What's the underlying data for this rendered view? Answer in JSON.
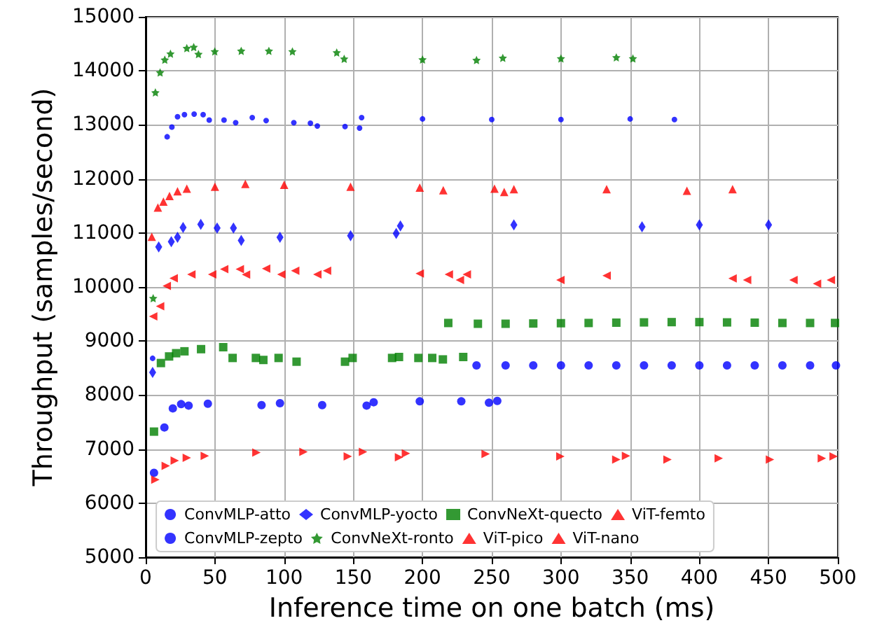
{
  "chart_data": {
    "type": "scatter",
    "xlabel": "Inference time on one batch (ms)",
    "ylabel": "Throughput (samples/second)",
    "xlim": [
      0,
      500
    ],
    "xticks": [
      0,
      50,
      100,
      150,
      200,
      250,
      300,
      350,
      400,
      450,
      500
    ],
    "ylim": [
      5000,
      15000
    ],
    "yticks": [
      5000,
      6000,
      7000,
      8000,
      9000,
      10000,
      11000,
      12000,
      13000,
      14000,
      15000
    ],
    "grid": true,
    "legend": "bottom",
    "series": [
      {
        "name": "ConvMLP-atto",
        "color": "#0000ff",
        "marker": "point",
        "x": [
          5,
          15.5,
          18.9,
          23,
          28,
          35,
          41.5,
          45.9,
          56.6,
          65,
          77,
          87,
          107,
          119,
          124,
          144,
          154.5,
          156,
          200,
          250,
          300,
          350,
          382
        ],
        "values": [
          8680,
          12780,
          12960,
          13150,
          13190,
          13200,
          13190,
          13090,
          13090,
          13040,
          13135,
          13080,
          13040,
          13030,
          12980,
          12970,
          12940,
          13135,
          13110,
          13100,
          13100,
          13110,
          13100
        ]
      },
      {
        "name": "ConvMLP-zepto",
        "color": "#0000ff",
        "marker": "circle",
        "x": [
          6,
          13.5,
          19.6,
          25.6,
          31,
          44.9,
          83.7,
          97,
          127.5,
          159.6,
          164.7,
          198,
          228,
          248,
          254
        ],
        "values": [
          6562,
          7401,
          7754,
          7832,
          7806,
          7840,
          7815,
          7850,
          7815,
          7806,
          7867,
          7884,
          7884,
          7858,
          7892
        ]
      },
      {
        "name": "ConvMLP-yocto",
        "color": "#0000ff",
        "marker": "diamond",
        "x": [
          5,
          9.4,
          18.5,
          23,
          27,
          39.8,
          51.6,
          63.4,
          69,
          97,
          148,
          181,
          184,
          266,
          358.6,
          400,
          450
        ],
        "values": [
          8420,
          10740,
          10840,
          10920,
          11100,
          11160,
          11090,
          11090,
          10860,
          10920,
          10950,
          10990,
          11130,
          11150,
          11114,
          11150,
          11150
        ]
      },
      {
        "name": "ConvNeXt-ronto",
        "color": "#008000",
        "marker": "star",
        "x": [
          5.4,
          7,
          10.4,
          13.8,
          17.9,
          29.7,
          34.7,
          38.1,
          49.9,
          69,
          89,
          106,
          138,
          143.4,
          200,
          239,
          258,
          300,
          340,
          352
        ],
        "values": [
          9793,
          13600,
          13970,
          14205,
          14318,
          14420,
          14440,
          14310,
          14360,
          14370,
          14370,
          14360,
          14340,
          14223,
          14210,
          14200,
          14240,
          14230,
          14250,
          14230
        ]
      },
      {
        "name": "ConvNeXt-quecto",
        "color": "#008000",
        "marker": "square",
        "x": [
          6,
          11,
          16.9,
          22,
          28,
          40,
          56,
          62.8,
          79.6,
          85,
          96,
          109,
          144,
          149.5,
          178,
          183,
          197,
          207,
          214.7,
          229.4
        ],
        "values": [
          7324,
          8593,
          8715,
          8775,
          8810,
          8850,
          8886,
          8687,
          8687,
          8650,
          8687,
          8618,
          8618,
          8687,
          8687,
          8705,
          8687,
          8687,
          8660,
          8705
        ]
      },
      {
        "name": "ViT-pico",
        "color": "#ff0000",
        "marker": "triangle-left",
        "x": [
          5.4,
          10.4,
          15.2,
          20.2,
          33,
          48,
          56.7,
          68,
          72.5,
          87,
          98,
          108,
          124,
          131,
          198,
          219,
          227,
          232,
          299.6,
          333,
          424,
          434.5,
          468,
          485,
          495
        ],
        "values": [
          9456,
          9645,
          10018,
          10163,
          10233,
          10233,
          10330,
          10330,
          10230,
          10340,
          10233,
          10300,
          10233,
          10300,
          10250,
          10233,
          10130,
          10233,
          10130,
          10210,
          10160,
          10130,
          10130,
          10060,
          10130
        ]
      },
      {
        "name": "ViT-femto",
        "color": "#ff0000",
        "marker": "triangle",
        "x": [
          4.4,
          8.8,
          12.8,
          17.2,
          23,
          29.7,
          50,
          72,
          100,
          148,
          198,
          215,
          252,
          259,
          266,
          333,
          391,
          424
        ],
        "values": [
          10930,
          11469,
          11580,
          11684,
          11770,
          11820,
          11857,
          11908,
          11890,
          11857,
          11840,
          11790,
          11820,
          11760,
          11810,
          11810,
          11780,
          11810
        ]
      },
      {
        "name": "ViT-nano",
        "color": "#ff0000",
        "marker": "triangle-right",
        "x": [
          7,
          14.5,
          21,
          29.7,
          42.7,
          80,
          114,
          146,
          157,
          183,
          188,
          245.6,
          299.6,
          340,
          347,
          377,
          414,
          451,
          488.5,
          497
        ],
        "values": [
          6433,
          6692,
          6788,
          6840,
          6875,
          6935,
          6950,
          6866,
          6950,
          6850,
          6920,
          6910,
          6866,
          6806,
          6875,
          6806,
          6830,
          6806,
          6830,
          6866
        ]
      },
      {
        "color": "#0000ff",
        "marker": "circle",
        "x": [
          239,
          260,
          280,
          300,
          320,
          340,
          360,
          380,
          400,
          420,
          440,
          460,
          480,
          498.7
        ],
        "values": [
          8549,
          8549,
          8549,
          8549,
          8549,
          8549,
          8549,
          8549,
          8549,
          8549,
          8549,
          8549,
          8549,
          8549
        ]
      },
      {
        "color": "#008000",
        "marker": "square",
        "x": [
          218.6,
          240,
          260,
          280,
          300,
          320,
          340,
          360,
          380,
          400,
          420,
          440,
          460,
          480,
          498
        ],
        "values": [
          9334,
          9320,
          9320,
          9325,
          9330,
          9334,
          9340,
          9345,
          9350,
          9350,
          9345,
          9340,
          9334,
          9334,
          9334
        ]
      }
    ]
  }
}
